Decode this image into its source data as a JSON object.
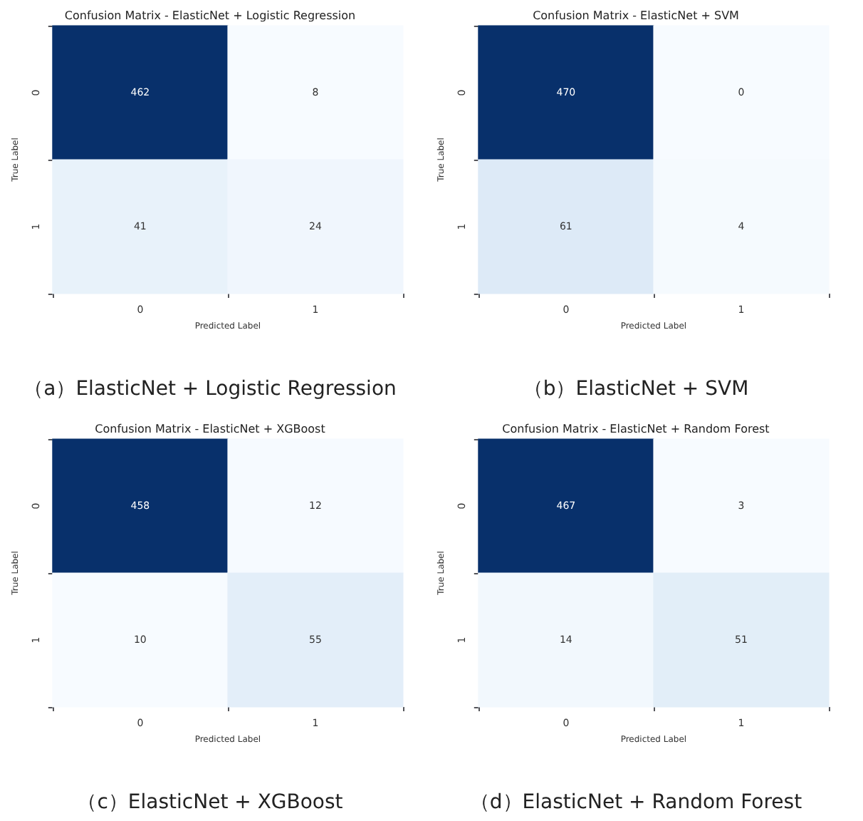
{
  "chart_data": [
    {
      "type": "heatmap",
      "title": "Confusion Matrix - ElasticNet + Logistic Regression",
      "xlabel": "Predicted Label",
      "ylabel": "True Label",
      "categories": [
        "0",
        "1"
      ],
      "y_categories": [
        "0",
        "1"
      ],
      "cells": [
        [
          462,
          8
        ],
        [
          41,
          24
        ]
      ],
      "data_labels": true,
      "annotations": [
        "（a）ElasticNet + Logistic Regression"
      ]
    },
    {
      "type": "heatmap",
      "title": "Confusion Matrix - ElasticNet + SVM",
      "xlabel": "Predicted Label",
      "ylabel": "True Label",
      "categories": [
        "0",
        "1"
      ],
      "y_categories": [
        "0",
        "1"
      ],
      "cells": [
        [
          470,
          0
        ],
        [
          61,
          4
        ]
      ],
      "data_labels": true,
      "annotations": [
        "（b）ElasticNet + SVM"
      ]
    },
    {
      "type": "heatmap",
      "title": "Confusion Matrix - ElasticNet + XGBoost",
      "xlabel": "Predicted Label",
      "ylabel": "True Label",
      "categories": [
        "0",
        "1"
      ],
      "y_categories": [
        "0",
        "1"
      ],
      "cells": [
        [
          458,
          12
        ],
        [
          10,
          55
        ]
      ],
      "data_labels": true,
      "annotations": [
        "（c）ElasticNet + XGBoost"
      ]
    },
    {
      "type": "heatmap",
      "title": "Confusion Matrix - ElasticNet + Random Forest",
      "xlabel": "Predicted Label",
      "ylabel": "True Label",
      "categories": [
        "0",
        "1"
      ],
      "y_categories": [
        "0",
        "1"
      ],
      "cells": [
        [
          467,
          3
        ],
        [
          14,
          51
        ]
      ],
      "data_labels": true,
      "annotations": [
        "（d）ElasticNet + Random Forest"
      ]
    }
  ]
}
